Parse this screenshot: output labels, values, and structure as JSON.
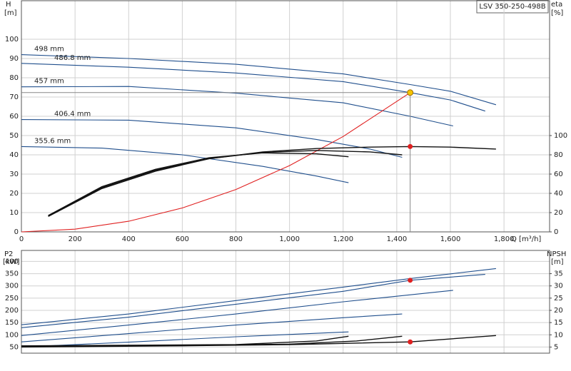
{
  "chart_data": [
    {
      "type": "line",
      "title": "LSV 350-250-498B",
      "y_label": "H",
      "y_unit": "[m]",
      "y2_label": "eta",
      "y2_unit": "[%]",
      "x_label": "Q [m³/h]",
      "xlim": [
        0,
        1970
      ],
      "xticks": [
        0,
        200,
        400,
        600,
        800,
        {
          "value": 1000,
          "label": "1,000"
        },
        {
          "value": 1200,
          "label": "1,200"
        },
        {
          "value": 1400,
          "label": "1,400"
        },
        {
          "value": 1600,
          "label": "1,600"
        },
        {
          "value": 1800,
          "label": "1,800"
        }
      ],
      "ylim": [
        0,
        120
      ],
      "yticks": [
        0,
        10,
        20,
        30,
        40,
        50,
        60,
        70,
        80,
        90,
        100
      ],
      "y2lim": [
        0,
        240
      ],
      "y2ticks": [
        0,
        20,
        40,
        60,
        80,
        100
      ],
      "grid": true,
      "series": [
        {
          "name": "498 mm",
          "color": "#1f4e8c",
          "x": [
            0,
            400,
            800,
            1200,
            1450,
            1600,
            1770
          ],
          "values": [
            92,
            90,
            87,
            82,
            76.5,
            73,
            66
          ]
        },
        {
          "name": "486.8 mm",
          "color": "#1f4e8c",
          "x": [
            0,
            400,
            800,
            1200,
            1450,
            1600,
            1730
          ],
          "values": [
            87.5,
            85.5,
            82.5,
            78,
            72.3,
            68.5,
            62.7
          ]
        },
        {
          "name": "457 mm",
          "color": "#1f4e8c",
          "x": [
            0,
            400,
            800,
            1200,
            1450,
            1610
          ],
          "values": [
            75.3,
            75.5,
            72,
            67,
            60,
            55
          ]
        },
        {
          "name": "406.4 mm",
          "color": "#1f4e8c",
          "x": [
            0,
            400,
            800,
            1100,
            1300,
            1420
          ],
          "values": [
            58.3,
            58,
            54,
            48,
            43,
            38.7
          ]
        },
        {
          "name": "355.6 mm",
          "color": "#1f4e8c",
          "x": [
            0,
            300,
            600,
            900,
            1100,
            1220
          ],
          "values": [
            44.3,
            43.5,
            40,
            34,
            29,
            25.5
          ]
        },
        {
          "color": "#e02020",
          "x": [
            0,
            200,
            400,
            600,
            800,
            1000,
            1200,
            1450
          ],
          "values": [
            0,
            1.4,
            5.5,
            12.4,
            22,
            34.4,
            49.5,
            72.3
          ]
        },
        {
          "color": "#111111",
          "axis": "y2",
          "x": [
            100,
            300,
            500,
            700,
            900,
            1100,
            1300,
            1450,
            1600,
            1770
          ],
          "values": [
            16,
            45,
            63,
            76,
            83,
            86.5,
            88,
            88.6,
            88,
            86
          ]
        },
        {
          "color": "#111111",
          "axis": "y2",
          "x": [
            100,
            300,
            500,
            700,
            900,
            1100,
            1300,
            1420
          ],
          "values": [
            17,
            46,
            64,
            76,
            82.5,
            84.5,
            83,
            80
          ]
        },
        {
          "color": "#111111",
          "axis": "y2",
          "x": [
            100,
            300,
            500,
            700,
            900,
            1100,
            1220
          ],
          "values": [
            17,
            47,
            65,
            77,
            82,
            81,
            78
          ]
        }
      ],
      "operating_point": {
        "x": 1450,
        "h": 72.3,
        "eta": 88.6,
        "h_color": "#f5c400",
        "eta_color": "#e02020"
      }
    },
    {
      "type": "line",
      "y_label": "P2",
      "y_unit": "[kW]",
      "y2_label": "NPSH",
      "y2_unit": "[m]",
      "xlim": [
        0,
        1970
      ],
      "sharex": true,
      "ylim": [
        25,
        445
      ],
      "yticks": [
        50,
        100,
        150,
        200,
        250,
        300,
        350,
        400
      ],
      "y2lim": [
        2.5,
        44.5
      ],
      "y2ticks": [
        5,
        10,
        15,
        20,
        25,
        30,
        35
      ],
      "grid": true,
      "series": [
        {
          "color": "#1f4e8c",
          "x": [
            0,
            400,
            800,
            1200,
            1450,
            1770
          ],
          "values": [
            141,
            185,
            240,
            295,
            330,
            371
          ]
        },
        {
          "color": "#1f4e8c",
          "x": [
            0,
            400,
            800,
            1200,
            1450,
            1730
          ],
          "values": [
            129,
            172,
            225,
            278,
            323,
            347
          ]
        },
        {
          "color": "#1f4e8c",
          "x": [
            0,
            400,
            800,
            1200,
            1610
          ],
          "values": [
            97,
            140,
            185,
            235,
            282
          ]
        },
        {
          "color": "#1f4e8c",
          "x": [
            0,
            400,
            800,
            1200,
            1420
          ],
          "values": [
            71,
            105,
            140,
            170,
            185
          ]
        },
        {
          "color": "#1f4e8c",
          "x": [
            0,
            400,
            800,
            1220
          ],
          "values": [
            50,
            70,
            92,
            112
          ]
        },
        {
          "color": "#111111",
          "axis": "y2",
          "x": [
            0,
            600,
            1000,
            1450,
            1770
          ],
          "values": [
            5,
            5.5,
            6,
            7.1,
            9.7
          ]
        },
        {
          "color": "#111111",
          "axis": "y2",
          "x": [
            0,
            600,
            1000,
            1250,
            1420
          ],
          "values": [
            5.3,
            5.6,
            6.2,
            7.5,
            9.4
          ]
        },
        {
          "color": "#111111",
          "axis": "y2",
          "x": [
            0,
            800,
            1100,
            1220
          ],
          "values": [
            5.5,
            6,
            7.5,
            9.4
          ]
        }
      ],
      "operating_point": {
        "x": 1450,
        "p2": 323,
        "npsh": 7.1,
        "color": "#e02020"
      }
    }
  ]
}
